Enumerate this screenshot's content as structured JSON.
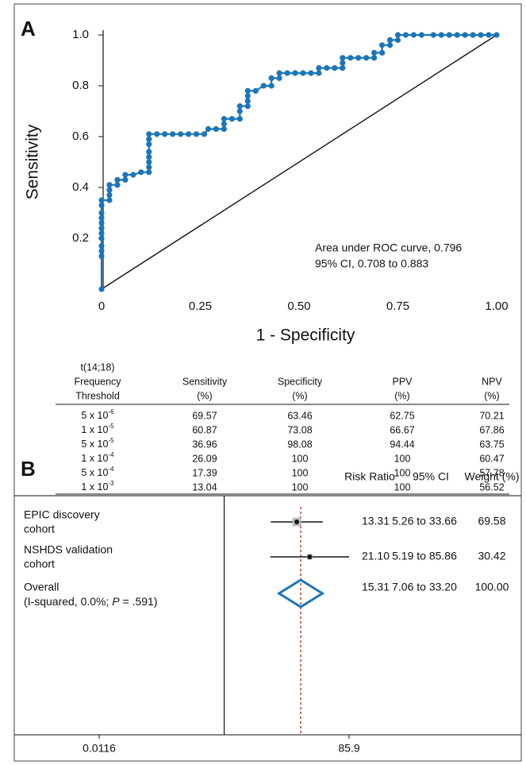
{
  "panel_labels": [
    "A",
    "B"
  ],
  "chart_data": [
    {
      "type": "line",
      "x_label": "1 - Specificity",
      "y_label": "Sensitivity",
      "xlim": [
        0,
        1
      ],
      "ylim": [
        0,
        1
      ],
      "xticks": [
        0,
        0.25,
        {
          "value": 0.5,
          "label": "0.50"
        },
        0.75,
        {
          "value": 1,
          "label": "1.00"
        }
      ],
      "yticks": [
        0.2,
        0.4,
        0.6,
        0.8,
        {
          "value": 1,
          "label": "1.0"
        }
      ],
      "reference_diagonal": true,
      "annotations": [
        "Area under ROC curve, 0.796",
        "95% CI, 0.708 to 0.883"
      ],
      "x": [
        0,
        0,
        0,
        0,
        0,
        0,
        0,
        0,
        0,
        0,
        0,
        0,
        0.02,
        0.02,
        0.02,
        0.02,
        0.04,
        0.04,
        0.06,
        0.06,
        0.08,
        0.1,
        0.12,
        0.12,
        0.12,
        0.12,
        0.12,
        0.12,
        0.12,
        0.12,
        0.14,
        0.16,
        0.18,
        0.2,
        0.22,
        0.24,
        0.26,
        0.27,
        0.29,
        0.31,
        0.31,
        0.31,
        0.33,
        0.35,
        0.35,
        0.35,
        0.37,
        0.37,
        0.37,
        0.37,
        0.39,
        0.41,
        0.43,
        0.43,
        0.45,
        0.45,
        0.47,
        0.49,
        0.51,
        0.53,
        0.55,
        0.55,
        0.57,
        0.59,
        0.61,
        0.61,
        0.61,
        0.63,
        0.65,
        0.67,
        0.69,
        0.69,
        0.71,
        0.71,
        0.73,
        0.73,
        0.75,
        0.75,
        0.77,
        0.79,
        0.81,
        0.84,
        0.86,
        0.88,
        0.9,
        0.92,
        0.94,
        0.96,
        0.98,
        1
      ],
      "series": [
        {
          "color": "#1b75bb",
          "values": [
            0,
            0.13,
            0.15,
            0.17,
            0.2,
            0.22,
            0.24,
            0.26,
            0.28,
            0.3,
            0.33,
            0.35,
            0.35,
            0.37,
            0.39,
            0.41,
            0.41,
            0.43,
            0.43,
            0.45,
            0.45,
            0.46,
            0.46,
            0.48,
            0.5,
            0.52,
            0.54,
            0.57,
            0.59,
            0.61,
            0.61,
            0.61,
            0.61,
            0.61,
            0.61,
            0.61,
            0.61,
            0.63,
            0.63,
            0.63,
            0.65,
            0.67,
            0.67,
            0.67,
            0.7,
            0.72,
            0.72,
            0.74,
            0.76,
            0.78,
            0.78,
            0.8,
            0.8,
            0.83,
            0.83,
            0.85,
            0.85,
            0.85,
            0.85,
            0.85,
            0.85,
            0.87,
            0.87,
            0.87,
            0.87,
            0.89,
            0.91,
            0.91,
            0.91,
            0.91,
            0.91,
            0.93,
            0.93,
            0.96,
            0.96,
            0.98,
            0.98,
            1,
            1,
            1,
            1,
            1,
            1,
            1,
            1,
            1,
            1,
            1,
            1,
            1
          ]
        }
      ]
    },
    {
      "type": "forest",
      "columns": [
        "Risk Ratio",
        "95% CI",
        "Weight (%)"
      ],
      "log_x": true,
      "xlim": [
        0.0116,
        85.9
      ],
      "xticks": [
        0.0116,
        85.9
      ],
      "reference_line": 1,
      "studies": [
        {
          "label": [
            "EPIC discovery",
            "cohort"
          ],
          "rr": 13.31,
          "ci": [
            5.26,
            33.66
          ],
          "ci_label": "5.26 to 33.66",
          "weight": 69.58
        },
        {
          "label": [
            "NSHDS validation",
            "cohort"
          ],
          "rr": 21.1,
          "rr_label": "21.10",
          "ci": [
            5.19,
            85.86
          ],
          "ci_label": "5.19 to 85.86",
          "weight": 30.42
        }
      ],
      "overall": {
        "label": [
          "Overall"
        ],
        "note_parts": [
          "(I-squared, 0.0%; ",
          "P",
          " = .591)"
        ],
        "rr": 15.31,
        "ci": [
          7.06,
          33.2
        ],
        "ci_label": "7.06 to 33.20",
        "weight": 100,
        "weight_label": "100.00",
        "color": "#1b75bb",
        "line_color": "#b5402f"
      }
    }
  ],
  "table": {
    "columns": [
      [
        "t(14;18)",
        "Frequency",
        "Threshold"
      ],
      [
        "Sensitivity",
        "(%)"
      ],
      [
        "Specificity",
        "(%)"
      ],
      [
        "PPV",
        "(%)"
      ],
      [
        "NPV",
        "(%)"
      ]
    ],
    "rows": [
      [
        {
          "base": "5 x 10",
          "exp": "-6"
        },
        69.57,
        63.46,
        62.75,
        70.21
      ],
      [
        {
          "base": "1 x 10",
          "exp": "-5"
        },
        60.87,
        73.08,
        66.67,
        67.86
      ],
      [
        {
          "base": "5 x 10",
          "exp": "-5"
        },
        36.96,
        98.08,
        94.44,
        63.75
      ],
      [
        {
          "base": "1 x 10",
          "exp": "-4"
        },
        26.09,
        100,
        100,
        60.47
      ],
      [
        {
          "base": "5 x 10",
          "exp": "-4"
        },
        17.39,
        100,
        100,
        57.78
      ],
      [
        {
          "base": "1 x 10",
          "exp": "-3"
        },
        13.04,
        100,
        100,
        56.52
      ]
    ]
  }
}
